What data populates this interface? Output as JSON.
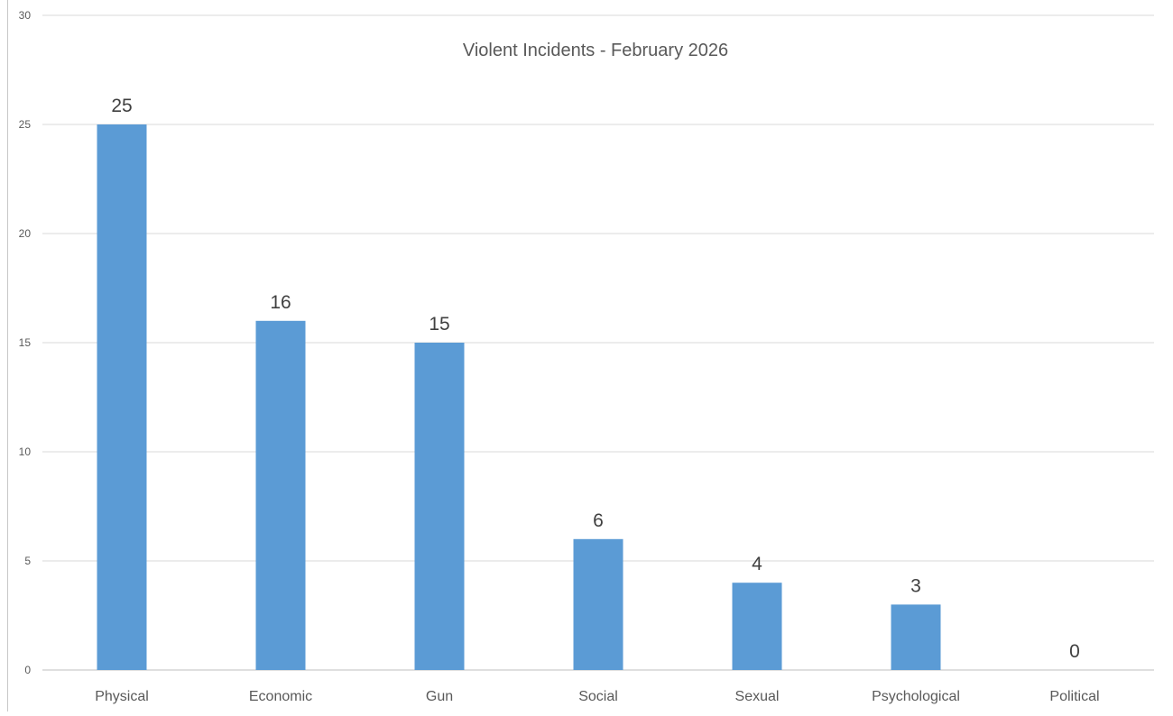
{
  "chart_data": {
    "type": "bar",
    "title": "Violent Incidents - February 2026",
    "xlabel": "",
    "ylabel": "",
    "categories": [
      "Physical",
      "Economic",
      "Gun",
      "Social",
      "Sexual",
      "Psychological",
      "Political"
    ],
    "values": [
      25,
      16,
      15,
      6,
      4,
      3,
      0
    ],
    "data_labels": [
      "25",
      "16",
      "15",
      "6",
      "4",
      "3",
      "0"
    ],
    "ylim": [
      0,
      30
    ],
    "yticks": [
      0,
      5,
      10,
      15,
      20,
      25,
      30
    ],
    "ytick_labels": [
      "0",
      "5",
      "10",
      "15",
      "20",
      "25",
      "30"
    ],
    "grid": true,
    "legend": "none",
    "colors": {
      "bar": "#5b9bd5"
    }
  }
}
